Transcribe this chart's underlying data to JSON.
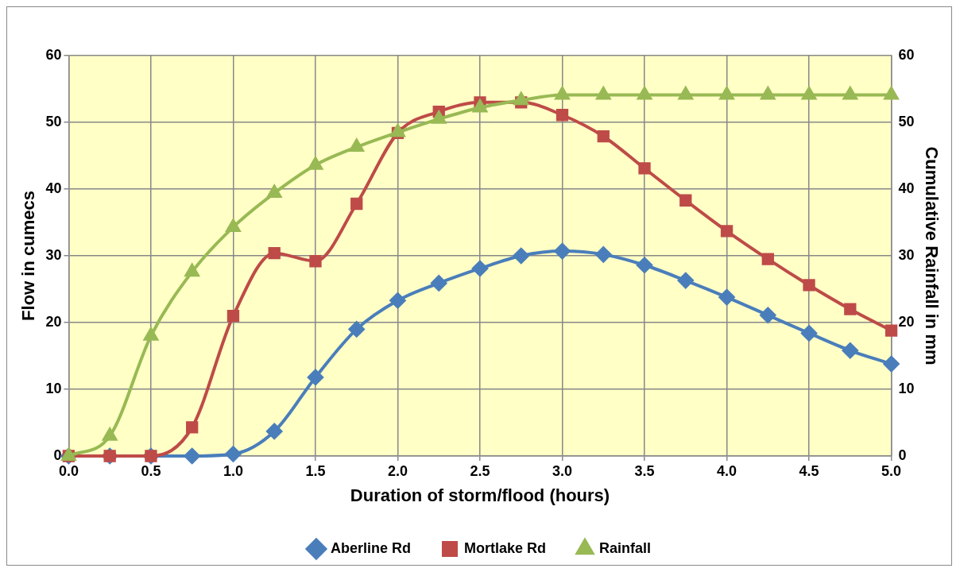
{
  "chart_data": {
    "type": "line",
    "xlabel": "Duration of storm/flood (hours)",
    "ylabel": "Flow in cumecs",
    "y2label": "Cumulative Rainfall in mm",
    "x": [
      0,
      0.25,
      0.5,
      0.75,
      1,
      1.25,
      1.5,
      1.75,
      2,
      2.25,
      2.5,
      2.75,
      3,
      3.25,
      3.5,
      3.75,
      4,
      4.25,
      4.5,
      4.75,
      5
    ],
    "series": [
      {
        "name": "Aberline Rd",
        "color": "#4a7ebb",
        "marker": "diamond",
        "values": [
          0,
          0,
          0,
          0,
          0.3,
          3.7,
          11.8,
          19.0,
          23.3,
          25.9,
          28.1,
          30.0,
          30.7,
          30.2,
          28.6,
          26.3,
          23.8,
          21.1,
          18.4,
          15.8,
          13.8
        ]
      },
      {
        "name": "Mortlake Rd",
        "color": "#be4b48",
        "marker": "square",
        "values": [
          0,
          0,
          0,
          4.3,
          21.0,
          30.4,
          29.2,
          37.8,
          48.4,
          51.6,
          53.0,
          53.0,
          51.1,
          47.9,
          43.1,
          38.3,
          33.7,
          29.5,
          25.6,
          22.0,
          18.8
        ]
      },
      {
        "name": "Rainfall",
        "color": "#98b954",
        "marker": "triangle",
        "axis": "y2",
        "values": [
          0,
          3.0,
          18.0,
          27.6,
          34.3,
          39.4,
          43.6,
          46.3,
          48.5,
          50.5,
          52.2,
          53.3,
          54.1,
          54.1,
          54.1,
          54.1,
          54.1,
          54.1,
          54.1,
          54.1,
          54.1
        ]
      }
    ],
    "xlim": [
      0,
      5
    ],
    "xticks": [
      {
        "value": 0,
        "label": "0.0"
      },
      {
        "value": 0.5,
        "label": "0.5"
      },
      {
        "value": 1,
        "label": "1.0"
      },
      {
        "value": 1.5,
        "label": "1.5"
      },
      {
        "value": 2,
        "label": "2.0"
      },
      {
        "value": 2.5,
        "label": "2.5"
      },
      {
        "value": 3,
        "label": "3.0"
      },
      {
        "value": 3.5,
        "label": "3.5"
      },
      {
        "value": 4,
        "label": "4.0"
      },
      {
        "value": 4.5,
        "label": "4.5"
      },
      {
        "value": 5,
        "label": "5.0"
      }
    ],
    "ylim": [
      0,
      60
    ],
    "yticks": [
      0,
      10,
      20,
      30,
      40,
      50,
      60
    ],
    "y2lim": [
      0,
      60
    ],
    "y2ticks": [
      0,
      10,
      20,
      30,
      40,
      50,
      60
    ],
    "grid": true,
    "legend": "bottom",
    "line_style": "solid"
  }
}
